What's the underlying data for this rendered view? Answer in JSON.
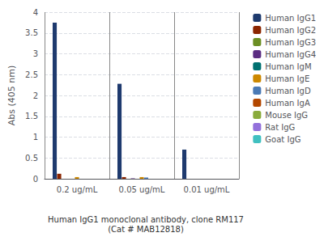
{
  "chart_data": {
    "type": "bar",
    "title": "Human IgG1 monoclonal antibody, clone RM117",
    "subtitle": "(Cat # MAB12818)",
    "ylabel": "Abs (405 nm)",
    "categories": [
      "0.2 ug/mL",
      "0.05 ug/mL",
      "0.01 ug/mL"
    ],
    "series": [
      {
        "name": "Human IgG1",
        "color": "#1e3a6e",
        "values": [
          3.75,
          2.28,
          0.7
        ]
      },
      {
        "name": "Human IgG2",
        "color": "#8b2500",
        "values": [
          0.12,
          0.04,
          0.0
        ]
      },
      {
        "name": "Human IgG3",
        "color": "#6b8e23",
        "values": [
          0.0,
          0.0,
          0.0
        ]
      },
      {
        "name": "Human IgG4",
        "color": "#5b2d82",
        "values": [
          0.0,
          0.01,
          0.0
        ]
      },
      {
        "name": "Human IgM",
        "color": "#007070",
        "values": [
          0.0,
          0.0,
          0.0
        ]
      },
      {
        "name": "Human IgE",
        "color": "#cc8800",
        "values": [
          0.04,
          0.04,
          0.0
        ]
      },
      {
        "name": "Human IgD",
        "color": "#4a7ab5",
        "values": [
          0.0,
          0.03,
          0.0
        ]
      },
      {
        "name": "Human IgA",
        "color": "#b34700",
        "values": [
          0.0,
          0.0,
          0.0
        ]
      },
      {
        "name": "Mouse IgG",
        "color": "#8aab3c",
        "values": [
          0.0,
          0.0,
          0.0
        ]
      },
      {
        "name": "Rat IgG",
        "color": "#9370db",
        "values": [
          0.0,
          0.0,
          0.0
        ]
      },
      {
        "name": "Goat IgG",
        "color": "#40c0c0",
        "values": [
          0.0,
          0.0,
          0.0
        ]
      }
    ],
    "ylim": [
      0,
      4
    ],
    "yticks": [
      0,
      0.5,
      1,
      1.5,
      2,
      2.5,
      3,
      3.5,
      4
    ],
    "grid": true,
    "legend": "right"
  }
}
